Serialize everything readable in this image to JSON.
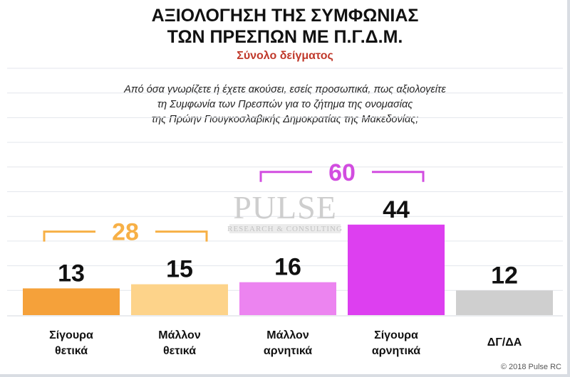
{
  "header": {
    "title_line1": "ΑΞΙΟΛΟΓΗΣΗ ΤΗΣ ΣΥΜΦΩΝΙΑΣ",
    "title_line2": "ΤΩΝ ΠΡΕΣΠΩΝ ΜΕ Π.Γ.Δ.Μ.",
    "subtitle": "Σύνολο δείγματος"
  },
  "question": {
    "line1": "Από όσα γνωρίζετε ή έχετε ακούσει, εσείς προσωπικά, πως αξιολογείτε",
    "line2": "τη Συμφωνία των Πρεσπών για το ζήτημα της ονομασίας",
    "line3": "της Πρώην Γιουγκοσλαβικής Δημοκρατίας της Μακεδονίας;"
  },
  "watermark": {
    "main": "PULSE",
    "sub": "RESEARCH & CONSULTING"
  },
  "footer": {
    "copyright": "© 2018 Pulse RC"
  },
  "chart_data": {
    "type": "bar",
    "categories": [
      [
        "Σίγουρα",
        "θετικά"
      ],
      [
        "Μάλλον",
        "θετικά"
      ],
      [
        "Μάλλον",
        "αρνητικά"
      ],
      [
        "Σίγουρα",
        "αρνητικά"
      ],
      [
        "ΔΓ/ΔΑ"
      ]
    ],
    "values": [
      13,
      15,
      16,
      44,
      12
    ],
    "colors": [
      "#f5a13a",
      "#fdd38a",
      "#ec84f0",
      "#dd3ff0",
      "#cfcfcf"
    ],
    "ylim": [
      0,
      120
    ],
    "grid": true,
    "groups": [
      {
        "label": "28",
        "from": 0,
        "to": 1,
        "color": "#f7b046"
      },
      {
        "label": "60",
        "from": 2,
        "to": 3,
        "color": "#d24de0"
      }
    ]
  }
}
